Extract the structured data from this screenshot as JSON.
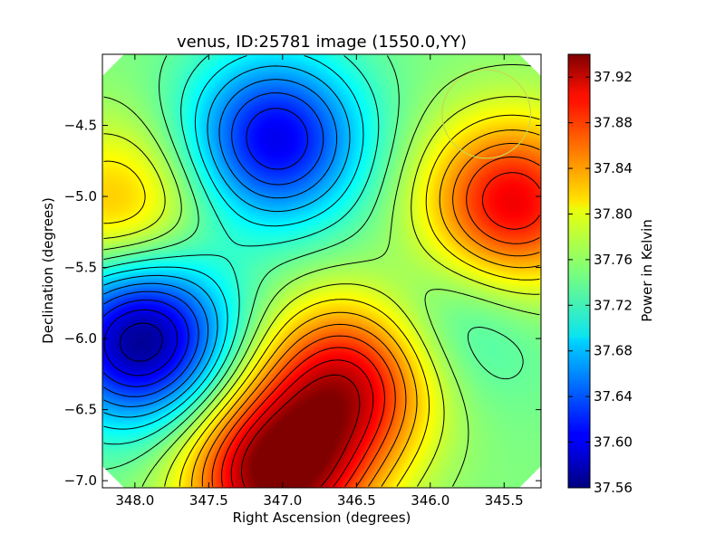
{
  "chart_data": {
    "type": "heatmap",
    "title": "venus, ID:25781 image (1550.0,YY)",
    "xlabel": "Right Ascension (degrees)",
    "ylabel": "Declination (degrees)",
    "colorbar_label": "Power in Kelvin",
    "colormap": "jet",
    "xlim": [
      348.22,
      345.25
    ],
    "ylim": [
      -7.05,
      -4.0
    ],
    "x_ticks": [
      348.0,
      347.5,
      347.0,
      346.5,
      346.0,
      345.5
    ],
    "x_tick_labels": [
      "348.0",
      "347.5",
      "347.0",
      "346.5",
      "346.0",
      "345.5"
    ],
    "y_ticks": [
      -4.5,
      -5.0,
      -5.5,
      -6.0,
      -6.5,
      -7.0
    ],
    "y_tick_labels": [
      "−4.5",
      "−5.0",
      "−5.5",
      "−6.0",
      "−6.5",
      "−7.0"
    ],
    "colorbar_range": [
      37.56,
      37.94
    ],
    "colorbar_ticks": [
      37.56,
      37.6,
      37.64,
      37.68,
      37.72,
      37.76,
      37.8,
      37.84,
      37.88,
      37.92
    ],
    "colorbar_tick_labels": [
      "37.56",
      "37.60",
      "37.64",
      "37.68",
      "37.72",
      "37.76",
      "37.80",
      "37.84",
      "37.88",
      "37.92"
    ],
    "contour_lines": true,
    "features": [
      {
        "kind": "min",
        "ra": 347.05,
        "dec": -4.6,
        "value": 37.6
      },
      {
        "kind": "min",
        "ra": 347.95,
        "dec": -6.0,
        "value": 37.56
      },
      {
        "kind": "max",
        "ra": 347.05,
        "dec": -6.95,
        "value": 37.94
      },
      {
        "kind": "max",
        "ra": 346.55,
        "dec": -6.3,
        "value": 37.9
      },
      {
        "kind": "max",
        "ra": 345.45,
        "dec": -5.05,
        "value": 37.9
      },
      {
        "kind": "max",
        "ra": 348.1,
        "dec": -5.1,
        "value": 37.83
      },
      {
        "kind": "min",
        "ra": 345.85,
        "dec": -5.9,
        "value": 37.71
      }
    ],
    "beam_circle": {
      "ra": 345.62,
      "dec": -4.42,
      "radius_deg": 0.3,
      "color": "#c6d84e"
    }
  },
  "colors": {
    "background": "#ffffff",
    "axes": "#000000",
    "contours": "#000000"
  }
}
